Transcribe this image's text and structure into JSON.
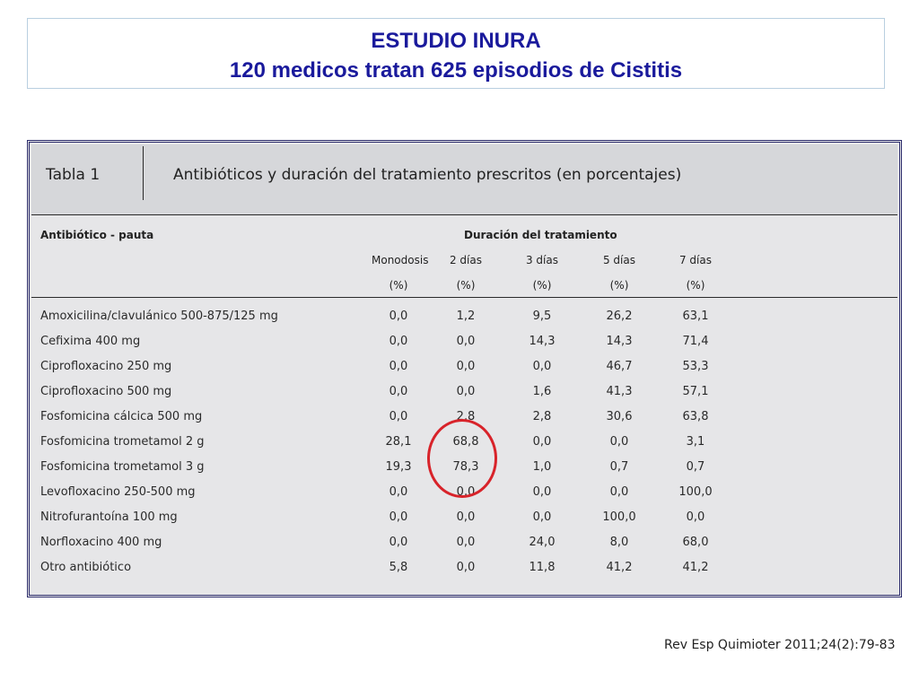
{
  "slide": {
    "title_line1": "ESTUDIO INURA",
    "title_line2": "120 medicos tratan 625 episodios de Cistitis"
  },
  "table": {
    "label": "Tabla 1",
    "caption": "Antibióticos y duración del tratamiento prescritos (en porcentajes)",
    "row_header": "Antibiótico - pauta",
    "group_header": "Duración del tratamiento",
    "columns": [
      {
        "name": "Monodosis",
        "unit": "(%)"
      },
      {
        "name": "2 días",
        "unit": "(%)"
      },
      {
        "name": "3 días",
        "unit": "(%)"
      },
      {
        "name": "5 días",
        "unit": "(%)"
      },
      {
        "name": "7 días",
        "unit": "(%)"
      }
    ],
    "rows": [
      {
        "name": "Amoxicilina/clavulánico 500-875/125 mg",
        "values": [
          "0,0",
          "1,2",
          "9,5",
          "26,2",
          "63,1"
        ]
      },
      {
        "name": "Cefixima 400 mg",
        "values": [
          "0,0",
          "0,0",
          "14,3",
          "14,3",
          "71,4"
        ]
      },
      {
        "name": "Ciprofloxacino 250 mg",
        "values": [
          "0,0",
          "0,0",
          "0,0",
          "46,7",
          "53,3"
        ]
      },
      {
        "name": "Ciprofloxacino 500 mg",
        "values": [
          "0,0",
          "0,0",
          "1,6",
          "41,3",
          "57,1"
        ]
      },
      {
        "name": "Fosfomicina cálcica 500 mg",
        "values": [
          "0,0",
          "2,8",
          "2,8",
          "30,6",
          "63,8"
        ]
      },
      {
        "name": "Fosfomicina trometamol 2 g",
        "values": [
          "28,1",
          "68,8",
          "0,0",
          "0,0",
          "3,1"
        ]
      },
      {
        "name": "Fosfomicina trometamol 3 g",
        "values": [
          "19,3",
          "78,3",
          "1,0",
          "0,7",
          "0,7"
        ]
      },
      {
        "name": "Levofloxacino 250-500 mg",
        "values": [
          "0,0",
          "0,0",
          "0,0",
          "0,0",
          "100,0"
        ]
      },
      {
        "name": "Nitrofurantoína 100 mg",
        "values": [
          "0,0",
          "0,0",
          "0,0",
          "100,0",
          "0,0"
        ]
      },
      {
        "name": "Norfloxacino 400 mg",
        "values": [
          "0,0",
          "0,0",
          "24,0",
          "8,0",
          "68,0"
        ]
      },
      {
        "name": "Otro antibiótico",
        "values": [
          "5,8",
          "0,0",
          "11,8",
          "41,2",
          "41,2"
        ]
      }
    ],
    "highlight_color": "#d8232a"
  },
  "citation": "Rev Esp Quimioter 2011;24(2):79-83"
}
